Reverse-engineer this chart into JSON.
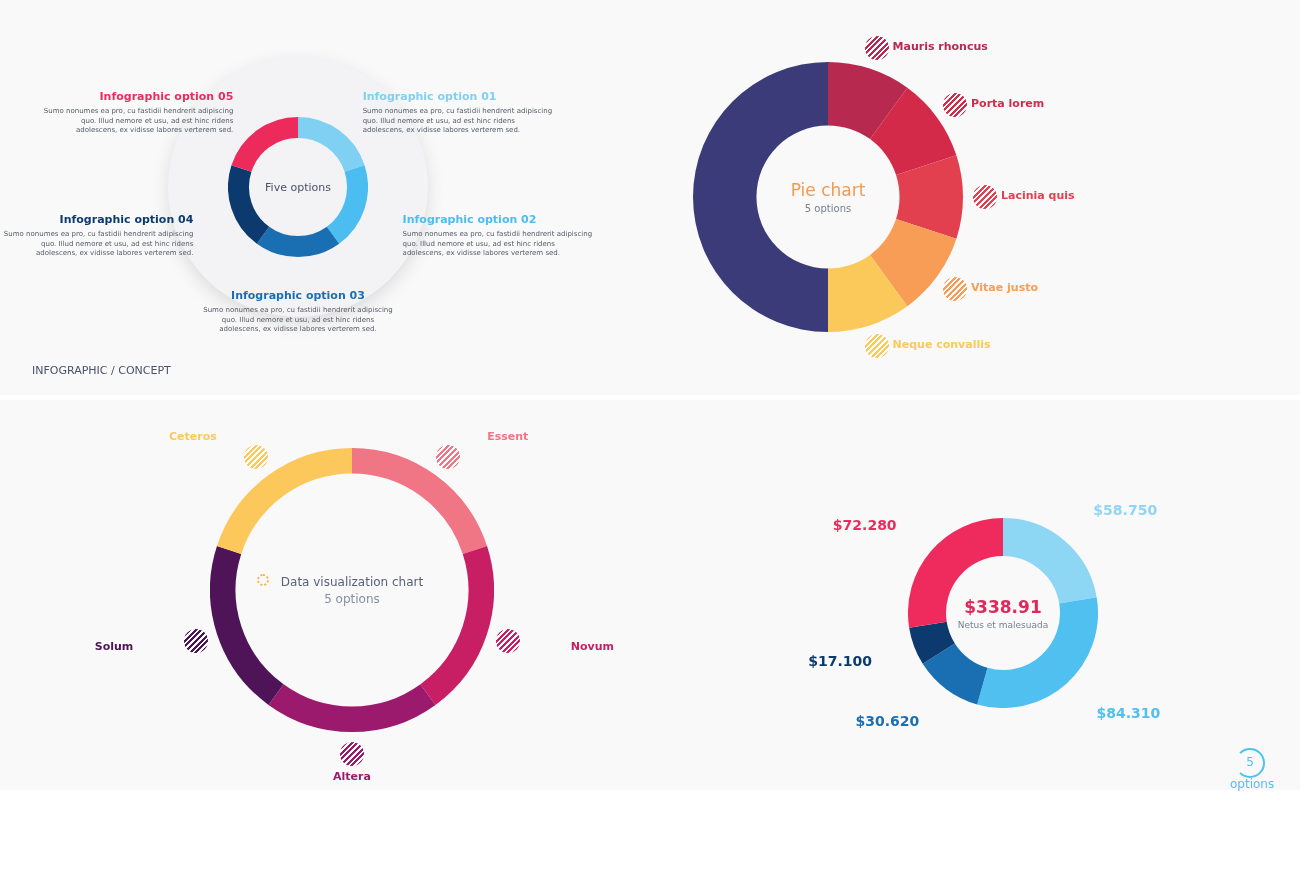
{
  "chart_data": [
    {
      "type": "donut",
      "title": "Five options",
      "categories": [
        "Infographic option 01",
        "Infographic option 02",
        "Infographic option 03",
        "Infographic option 04",
        "Infographic option 05"
      ],
      "values": [
        20,
        20,
        20,
        20,
        20
      ],
      "colors": [
        "#7fd0f2",
        "#4cbdf0",
        "#1a6fb3",
        "#0d3a6e",
        "#ec2a5c"
      ],
      "annotations": [
        "Sumo nonumes ea pro, cu fastidii hendrerit adipiscing quo. Illud nemore et usu, ad est hinc ridens adolescens, ex vidisse labores verterem sed.",
        "Sumo nonumes ea pro, cu fastidii hendrerit adipiscing quo. Illud nemore et usu, ad est hinc ridens adolescens, ex vidisse labores verterem sed.",
        "Sumo nonumes ea pro, cu fastidii hendrerit adipiscing quo. Illud nemore et usu, ad est hinc ridens adolescens, ex vidisse labores verterem sed.",
        "Sumo nonumes ea pro, cu fastidii hendrerit adipiscing quo. Illud nemore et usu, ad est hinc ridens adolescens, ex vidisse labores verterem sed.",
        "Sumo nonumes ea pro, cu fastidii hendrerit adipiscing quo. Illud nemore et usu, ad est hinc ridens adolescens, ex vidisse labores verterem sed.",
        "INFOGRAPHIC / CONCEPT"
      ]
    },
    {
      "type": "donut",
      "title": "Pie chart",
      "subtitle": "5 options",
      "categories": [
        "Mauris rhoncus",
        "Porta lorem",
        "Lacinia quis",
        "Vitae justo",
        "Neque convallis",
        null
      ],
      "values": [
        10,
        10,
        10,
        10,
        10,
        50
      ],
      "colors": [
        "#b8294f",
        "#d42a4a",
        "#e23f4f",
        "#f79d55",
        "#fbc85a",
        "#3b3b7a"
      ],
      "legend": "right"
    },
    {
      "type": "donut",
      "title": "Data visualization chart",
      "subtitle": "5 options",
      "categories": [
        "Essent",
        "Novum",
        "Altera",
        "Solum",
        "Ceteros"
      ],
      "values": [
        20,
        20,
        20,
        20,
        20
      ],
      "colors": [
        "#f07585",
        "#c81e64",
        "#9c1a6e",
        "#4e1457",
        "#fcc85c"
      ]
    },
    {
      "type": "donut",
      "title": "$338.91",
      "subtitle": "Netus et malesuada",
      "categories": [
        null,
        null,
        null,
        null,
        null
      ],
      "values": [
        58.75,
        84.31,
        30.62,
        17.1,
        72.28
      ],
      "value_labels": [
        "$58.750",
        "$84.310",
        "$30.620",
        "$17.100",
        "$72.280"
      ],
      "colors": [
        "#8dd6f4",
        "#4fc0ef",
        "#1a6fb3",
        "#0d3a6e",
        "#ef2a5c"
      ],
      "annotations": [
        "5 options"
      ]
    }
  ]
}
